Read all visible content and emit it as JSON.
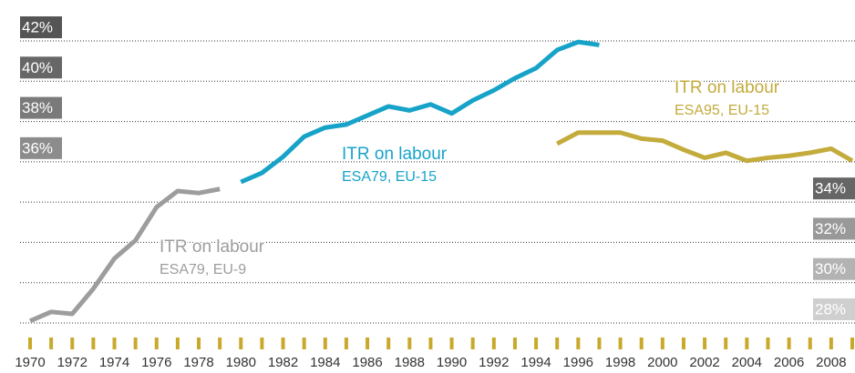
{
  "chart_data": {
    "type": "line",
    "x": [
      1970,
      1971,
      1972,
      1973,
      1974,
      1975,
      1976,
      1977,
      1978,
      1979,
      1980,
      1981,
      1982,
      1983,
      1984,
      1985,
      1986,
      1987,
      1988,
      1989,
      1990,
      1991,
      1992,
      1993,
      1994,
      1995,
      1996,
      1997,
      1998,
      1999,
      2000,
      2001,
      2002,
      2003,
      2004,
      2005,
      2006,
      2007,
      2008,
      2009
    ],
    "xticks": [
      1970,
      1972,
      1974,
      1976,
      1978,
      1980,
      1982,
      1984,
      1986,
      1988,
      1990,
      1992,
      1994,
      1996,
      1998,
      2000,
      2002,
      2004,
      2006,
      2008
    ],
    "xlim": [
      1970,
      2009
    ],
    "ylim": [
      28,
      42
    ],
    "yticks": [
      {
        "value": 28,
        "label": "28%"
      },
      {
        "value": 30,
        "label": "30%"
      },
      {
        "value": 32,
        "label": "32%"
      },
      {
        "value": 34,
        "label": "34%"
      },
      {
        "value": 36,
        "label": "36%"
      },
      {
        "value": 38,
        "label": "38%"
      },
      {
        "value": 40,
        "label": "40%"
      },
      {
        "value": 42,
        "label": "42%"
      }
    ],
    "ytick_colors": [
      "#cfcfcf",
      "#b3b3b3",
      "#999999",
      "#666666",
      "#8c8c8c",
      "#7a7a7a",
      "#676767",
      "#555555"
    ],
    "grid": true,
    "tick_color": "#c9a92b",
    "series": [
      {
        "name": "ITR on labour ESA79, EU-9",
        "color": "#9d9d9d",
        "values": [
          28.1,
          28.55,
          28.45,
          29.7,
          31.2,
          32.1,
          33.75,
          34.55,
          34.45,
          34.65,
          null,
          null,
          null,
          null,
          null,
          null,
          null,
          null,
          null,
          null,
          null,
          null,
          null,
          null,
          null,
          null,
          null,
          null,
          null,
          null,
          null,
          null,
          null,
          null,
          null,
          null,
          null,
          null,
          null,
          null
        ]
      },
      {
        "name": "ITR on labour ESA79, EU-15",
        "color": "#17a3c9",
        "values": [
          null,
          null,
          null,
          null,
          null,
          null,
          null,
          null,
          null,
          null,
          35.0,
          35.45,
          36.25,
          37.25,
          37.7,
          37.85,
          38.3,
          38.75,
          38.55,
          38.85,
          38.4,
          39.05,
          39.55,
          40.15,
          40.65,
          41.55,
          41.95,
          41.8,
          null,
          null,
          null,
          null,
          null,
          null,
          null,
          null,
          null,
          null,
          null,
          null
        ]
      },
      {
        "name": "ITR on labour ESA95, EU-15",
        "color": "#c3ab3c",
        "values": [
          null,
          null,
          null,
          null,
          null,
          null,
          null,
          null,
          null,
          null,
          null,
          null,
          null,
          null,
          null,
          null,
          null,
          null,
          null,
          null,
          null,
          null,
          null,
          null,
          null,
          36.9,
          37.45,
          37.45,
          37.45,
          37.15,
          37.05,
          36.6,
          36.2,
          36.45,
          36.05,
          36.2,
          36.3,
          36.45,
          36.65,
          36.05
        ]
      }
    ],
    "annotations": [
      {
        "lines": [
          "ITR on labour",
          "ESA79, EU-9"
        ],
        "color": "#9d9d9d"
      },
      {
        "lines": [
          "ITR on labour",
          "ESA79, EU-15"
        ],
        "color": "#17a3c9"
      },
      {
        "lines": [
          "ITR on labour",
          "ESA95, EU-15"
        ],
        "color": "#c3ab3c"
      }
    ]
  }
}
